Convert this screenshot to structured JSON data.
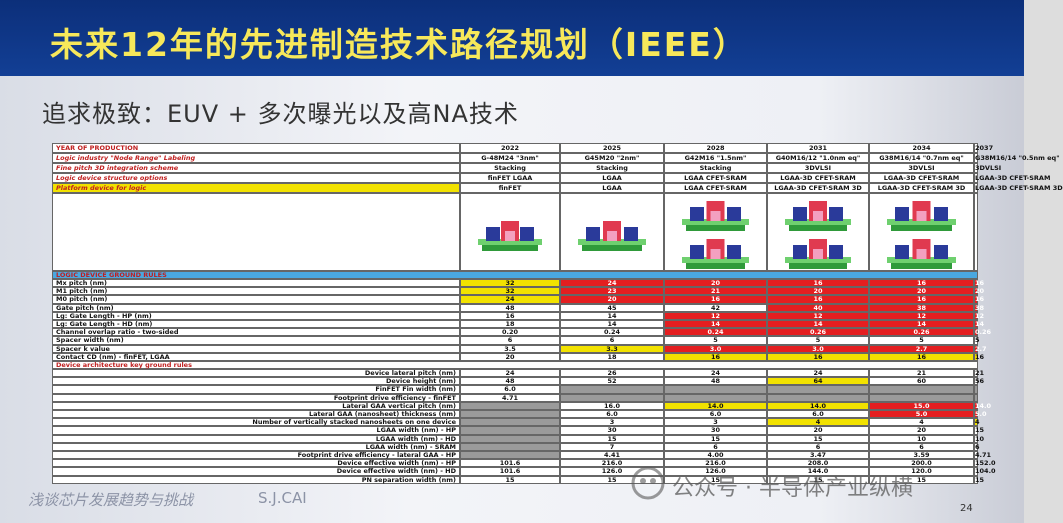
{
  "header": {
    "title": "未来12年的先进制造技术路径规划（IEEE）",
    "subtitle": "追求极致：EUV + 多次曝光以及高NA技术"
  },
  "table": {
    "columns": [
      "YEAR OF PRODUCTION",
      "2022",
      "2025",
      "2028",
      "2031",
      "2034",
      "2037"
    ],
    "rows": [
      {
        "label": "Logic industry \"Node Range\" Labeling",
        "cells": [
          "G-48M24 \"3nm\"",
          "G45M20 \"2nm\"",
          "G42M16 \"1.5nm\"",
          "G40M16/12 \"1.0nm eq\"",
          "G38M16/14 \"0.7nm eq\"",
          "G38M16/14 \"0.5nm eq\""
        ],
        "fills": [
          "#ffffff",
          "#ffffff",
          "#ffffff",
          "#ffffff",
          "#ffffff",
          "#ffffff"
        ]
      },
      {
        "label": "Fine pitch 3D integration scheme",
        "cells": [
          "Stacking",
          "Stacking",
          "Stacking",
          "3DVLSI",
          "3DVLSI",
          "3DVLSI"
        ],
        "fills": [
          "#ffffff",
          "#ffffff",
          "#ffffff",
          "#ffffff",
          "#ffffff",
          "#ffffff"
        ]
      },
      {
        "label": "Logic device structure options",
        "cells": [
          "finFET LGAA",
          "LGAA",
          "LGAA CFET-SRAM",
          "LGAA-3D CFET-SRAM",
          "LGAA-3D CFET-SRAM",
          "LGAA-3D CFET-SRAM"
        ],
        "fills": [
          "#ffffff",
          "#ffffff",
          "#ffffff",
          "#ffffff",
          "#ffffff",
          "#ffffff"
        ]
      },
      {
        "label": "Platform device for logic",
        "label_fill": "#f2e200",
        "cells": [
          "finFET",
          "LGAA",
          "LGAA CFET-SRAM",
          "LGAA-3D CFET-SRAM 3D",
          "LGAA-3D CFET-SRAM 3D",
          "LGAA-3D CFET-SRAM 3D"
        ],
        "fills": [
          "#ffffff",
          "#ffffff",
          "#ffffff",
          "#ffffff",
          "#ffffff",
          "#ffffff"
        ],
        "diagram": true
      },
      {
        "label": "LOGIC DEVICE GROUND RULES",
        "label_fill": "#4aa8e0"
      },
      {
        "label": "Mx pitch (nm)",
        "cells": [
          "32",
          "24",
          "20",
          "16",
          "16",
          "16"
        ],
        "fills": [
          "#f2e200",
          "#e41e20",
          "#e41e20",
          "#e41e20",
          "#e41e20",
          "#e41e20"
        ]
      },
      {
        "label": "M1 pitch (nm)",
        "cells": [
          "32",
          "23",
          "21",
          "20",
          "20",
          "20"
        ],
        "fills": [
          "#f2e200",
          "#e41e20",
          "#e41e20",
          "#e41e20",
          "#e41e20",
          "#e41e20"
        ]
      },
      {
        "label": "M0 pitch (nm)",
        "cells": [
          "24",
          "20",
          "16",
          "16",
          "16",
          "16"
        ],
        "fills": [
          "#f2e200",
          "#e41e20",
          "#e41e20",
          "#e41e20",
          "#e41e20",
          "#e41e20"
        ]
      },
      {
        "label": "Gate pitch (nm)",
        "cells": [
          "48",
          "45",
          "42",
          "40",
          "38",
          "38"
        ],
        "fills": [
          "#ffffff",
          "#ffffff",
          "#ffffff",
          "#e41e20",
          "#e41e20",
          "#e41e20"
        ]
      },
      {
        "label": "Lg: Gate Length - HP (nm)",
        "cells": [
          "16",
          "14",
          "12",
          "12",
          "12",
          "12"
        ],
        "fills": [
          "#ffffff",
          "#ffffff",
          "#e41e20",
          "#e41e20",
          "#e41e20",
          "#e41e20"
        ]
      },
      {
        "label": "Lg: Gate Length - HD (nm)",
        "cells": [
          "18",
          "14",
          "14",
          "14",
          "14",
          "14"
        ],
        "fills": [
          "#ffffff",
          "#ffffff",
          "#e41e20",
          "#e41e20",
          "#e41e20",
          "#e41e20"
        ]
      },
      {
        "label": "Channel overlap ratio - two-sided",
        "cells": [
          "0.20",
          "0.24",
          "0.24",
          "0.26",
          "0.26",
          "0.26"
        ],
        "fills": [
          "#ffffff",
          "#ffffff",
          "#e41e20",
          "#e41e20",
          "#e41e20",
          "#e41e20"
        ]
      },
      {
        "label": "Spacer width (nm)",
        "cells": [
          "6",
          "6",
          "5",
          "5",
          "5",
          "5"
        ],
        "fills": [
          "#ffffff",
          "#ffffff",
          "#ffffff",
          "#ffffff",
          "#ffffff",
          "#ffffff"
        ]
      },
      {
        "label": "Spacer k value",
        "cells": [
          "3.5",
          "3.3",
          "3.0",
          "3.0",
          "2.7",
          "2.7"
        ],
        "fills": [
          "#ffffff",
          "#f2e200",
          "#e41e20",
          "#e41e20",
          "#e41e20",
          "#e41e20"
        ]
      },
      {
        "label": "Contact CD (nm) - finFET, LGAA",
        "cells": [
          "20",
          "18",
          "16",
          "16",
          "16",
          "16"
        ],
        "fills": [
          "#ffffff",
          "#ffffff",
          "#f2e200",
          "#f2e200",
          "#f2e200",
          "#f2e200"
        ]
      },
      {
        "label": "Device architecture key ground rules"
      },
      {
        "label": "Device lateral pitch (nm)",
        "align": "right",
        "cells": [
          "24",
          "26",
          "24",
          "24",
          "21",
          "21"
        ],
        "fills": [
          "#ffffff",
          "#ffffff",
          "#ffffff",
          "#ffffff",
          "#ffffff",
          "#ffffff"
        ]
      },
      {
        "label": "Device height (nm)",
        "align": "right",
        "cells": [
          "48",
          "52",
          "48",
          "64",
          "60",
          "56"
        ],
        "fills": [
          "#ffffff",
          "#ffffff",
          "#ffffff",
          "#f2e200",
          "#ffffff",
          "#ffffff"
        ]
      },
      {
        "label": "FinFET Fin width (nm)",
        "align": "right",
        "cells": [
          "6.0",
          null,
          null,
          null,
          null,
          null
        ],
        "fills": [
          "#ffffff",
          "#9a9a9a",
          "#9a9a9a",
          "#9a9a9a",
          "#9a9a9a",
          "#9a9a9a"
        ]
      },
      {
        "label": "Footprint drive efficiency - finFET",
        "align": "right",
        "cells": [
          "4.71",
          null,
          null,
          null,
          null,
          null
        ],
        "fills": [
          "#ffffff",
          "#9a9a9a",
          "#9a9a9a",
          "#9a9a9a",
          "#9a9a9a",
          "#9a9a9a"
        ]
      },
      {
        "label": "Lateral GAA vertical pitch (nm)",
        "align": "right",
        "cells": [
          null,
          "16.0",
          "14.0",
          "14.0",
          "15.0",
          "14.0"
        ],
        "fills": [
          "#9a9a9a",
          "#ffffff",
          "#f2e200",
          "#f2e200",
          "#e41e20",
          "#e41e20"
        ]
      },
      {
        "label": "Lateral GAA (nanosheet) thickness (nm)",
        "align": "right",
        "cells": [
          null,
          "6.0",
          "6.0",
          "6.0",
          "5.0",
          "5.0"
        ],
        "fills": [
          "#9a9a9a",
          "#ffffff",
          "#ffffff",
          "#ffffff",
          "#e41e20",
          "#e41e20"
        ]
      },
      {
        "label": "Number of vertically stacked nanosheets on one device",
        "align": "right",
        "cells": [
          null,
          "3",
          "3",
          "4",
          "4",
          "4"
        ],
        "fills": [
          "#9a9a9a",
          "#ffffff",
          "#ffffff",
          "#f2e200",
          "#ffffff",
          "#f2e200"
        ]
      },
      {
        "label": "LGAA width (nm) - HP",
        "align": "right",
        "cells": [
          null,
          "30",
          "30",
          "20",
          "20",
          "15"
        ],
        "fills": [
          "#9a9a9a",
          "#ffffff",
          "#ffffff",
          "#ffffff",
          "#ffffff",
          "#ffffff"
        ]
      },
      {
        "label": "LGAA width (nm) - HD",
        "align": "right",
        "cells": [
          null,
          "15",
          "15",
          "15",
          "10",
          "10"
        ],
        "fills": [
          "#9a9a9a",
          "#ffffff",
          "#ffffff",
          "#ffffff",
          "#ffffff",
          "#ffffff"
        ]
      },
      {
        "label": "LGAA width (nm) - SRAM",
        "align": "right",
        "cells": [
          null,
          "7",
          "6",
          "6",
          "6",
          "6"
        ],
        "fills": [
          "#9a9a9a",
          "#ffffff",
          "#ffffff",
          "#ffffff",
          "#ffffff",
          "#ffffff"
        ]
      },
      {
        "label": "Footprint drive efficiency - lateral GAA - HP",
        "align": "right",
        "cells": [
          null,
          "4.41",
          "4.00",
          "3.47",
          "3.59",
          "4.71"
        ],
        "fills": [
          "#9a9a9a",
          "#ffffff",
          "#ffffff",
          "#ffffff",
          "#ffffff",
          "#ffffff"
        ]
      },
      {
        "label": "Device effective width (nm) - HP",
        "align": "right",
        "cells": [
          "101.6",
          "216.0",
          "216.0",
          "208.0",
          "200.0",
          "152.0"
        ],
        "fills": [
          "#ffffff",
          "#ffffff",
          "#ffffff",
          "#ffffff",
          "#ffffff",
          "#ffffff"
        ]
      },
      {
        "label": "Device effective width (nm) - HD",
        "align": "right",
        "cells": [
          "101.6",
          "126.0",
          "126.0",
          "144.0",
          "120.0",
          "104.0"
        ],
        "fills": [
          "#ffffff",
          "#ffffff",
          "#ffffff",
          "#ffffff",
          "#ffffff",
          "#ffffff"
        ]
      },
      {
        "label": "PN separation width (nm)",
        "align": "right",
        "cells": [
          "15",
          "15",
          "15",
          "15",
          "15",
          "15"
        ],
        "fills": [
          "#ffffff",
          "#ffffff",
          "#ffffff",
          "#ffffff",
          "#ffffff",
          "#ffffff"
        ]
      }
    ]
  },
  "footer": {
    "left": "浅谈芯片发展趋势与挑战",
    "author": "S.J.CAI",
    "page": "24"
  },
  "watermark": "公众号 · 半导体产业纵横"
}
